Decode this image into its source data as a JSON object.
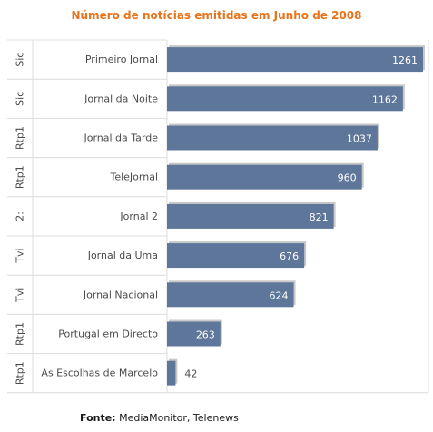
{
  "chart_data": {
    "type": "bar",
    "orientation": "horizontal",
    "title": "Número de notícias emitidas em Junho de 2008",
    "categories": [
      "Primeiro Jornal",
      "Jornal da Noite",
      "Jornal da Tarde",
      "TeleJornal",
      "Jornal 2",
      "Jornal da Uma",
      "Jornal Nacional",
      "Portugal em Directo",
      "As Escolhas de Marcelo"
    ],
    "groups": [
      "Sic",
      "Sic",
      "Rtp1",
      "Rtp1",
      "2:",
      "Tvi",
      "Tvi",
      "Rtp1",
      "Rtp1"
    ],
    "values": [
      1261,
      1162,
      1037,
      960,
      821,
      676,
      624,
      263,
      42
    ],
    "value_labels": [
      "1261",
      "1162",
      "1037",
      "960",
      "821",
      "676",
      "624",
      "263",
      "42"
    ],
    "xlim": [
      0,
      1261
    ],
    "grid": true,
    "colors": {
      "bar": "#5d7699",
      "bar_shadow": "#c8c8c8",
      "title": "#e8731a",
      "grid": "#dcdcdc"
    }
  },
  "source": {
    "label": "Fonte:",
    "text": "MediaMonitor, Telenews"
  }
}
